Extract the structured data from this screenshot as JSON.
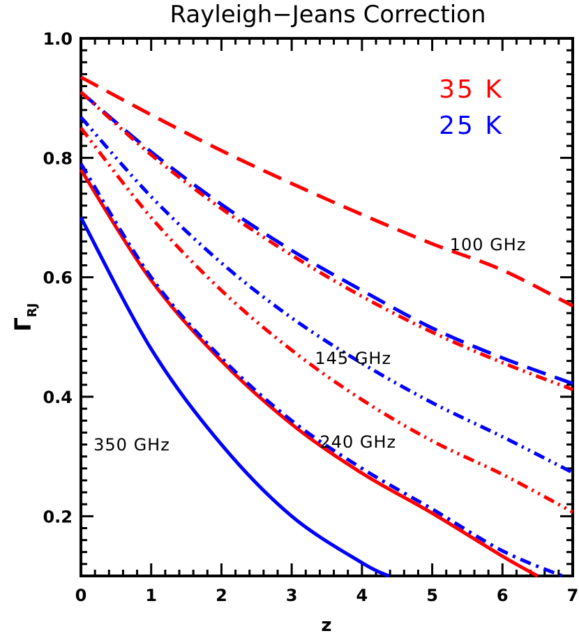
{
  "chart_data": {
    "type": "line",
    "title": "Rayleigh−Jeans Correction",
    "xlabel": "z",
    "ylabel_main": "Γ",
    "ylabel_sub": "RJ",
    "xlim": [
      0,
      7
    ],
    "ylim": [
      0.1,
      1.0
    ],
    "xticks": [
      0,
      1,
      2,
      3,
      4,
      5,
      6,
      7
    ],
    "xtick_labels": [
      "0",
      "1",
      "2",
      "3",
      "4",
      "5",
      "6",
      "7"
    ],
    "yticks": [
      0.2,
      0.4,
      0.6,
      0.8,
      1.0
    ],
    "ytick_labels": [
      "0.2",
      "0.4",
      "0.6",
      "0.8",
      "1.0"
    ],
    "legend": [
      {
        "label": "35 K",
        "color": "#ff0000"
      },
      {
        "label": "25 K",
        "color": "#0000ff"
      }
    ],
    "annotations": [
      {
        "text": "100 GHz",
        "x": 5.25,
        "y": 0.645
      },
      {
        "text": "145 GHz",
        "x": 3.33,
        "y": 0.455
      },
      {
        "text": "240 GHz",
        "x": 3.4,
        "y": 0.315
      },
      {
        "text": "350 GHz",
        "x": 0.18,
        "y": 0.31
      }
    ],
    "series": [
      {
        "freq": "100 GHz",
        "temp": "35 K",
        "color": "#ff0000",
        "style": "dashed",
        "x": [
          0,
          1,
          2,
          3,
          4,
          5,
          6,
          7
        ],
        "y": [
          0.935,
          0.872,
          0.812,
          0.757,
          0.705,
          0.656,
          0.612,
          0.552
        ]
      },
      {
        "freq": "100 GHz",
        "temp": "25 K",
        "color": "#0000ff",
        "style": "dashed",
        "x": [
          0,
          1,
          2,
          3,
          4,
          5,
          6,
          7
        ],
        "y": [
          0.91,
          0.81,
          0.722,
          0.645,
          0.578,
          0.515,
          0.465,
          0.422
        ]
      },
      {
        "freq": "145 GHz",
        "temp": "35 K",
        "color": "#ff0000",
        "style": "dot-dot-dash",
        "x": [
          0,
          1,
          2,
          3,
          4,
          5,
          6,
          7
        ],
        "y": [
          0.91,
          0.805,
          0.715,
          0.637,
          0.568,
          0.508,
          0.457,
          0.412
        ]
      },
      {
        "freq": "145 GHz",
        "temp": "25 K",
        "color": "#0000ff",
        "style": "dot-dot-dash",
        "x": [
          0,
          1,
          2,
          3,
          4,
          5,
          6,
          7
        ],
        "y": [
          0.868,
          0.735,
          0.624,
          0.532,
          0.456,
          0.39,
          0.333,
          0.273
        ]
      },
      {
        "freq": "240 GHz",
        "temp": "35 K",
        "color": "#ff0000",
        "style": "dot-dot-dash",
        "x": [
          0,
          1,
          2,
          3,
          4,
          5,
          6,
          7
        ],
        "y": [
          0.85,
          0.7,
          0.578,
          0.478,
          0.395,
          0.326,
          0.27,
          0.207
        ]
      },
      {
        "freq": "240 GHz",
        "temp": "35 K",
        "color": "#ff0000",
        "style": "solid",
        "x": [
          0,
          1,
          2,
          3,
          4,
          5,
          6,
          6.5
        ],
        "y": [
          0.78,
          0.595,
          0.46,
          0.354,
          0.272,
          0.205,
          0.133,
          0.1
        ]
      },
      {
        "freq": "240 GHz",
        "temp": "25 K",
        "color": "#0000ff",
        "style": "dash-dot",
        "x": [
          0,
          1,
          2,
          3,
          4,
          5,
          6,
          6.85
        ],
        "y": [
          0.79,
          0.6,
          0.465,
          0.36,
          0.28,
          0.212,
          0.142,
          0.1
        ]
      },
      {
        "freq": "350 GHz",
        "temp": "25 K",
        "color": "#0000ff",
        "style": "solid",
        "x": [
          0,
          1,
          2,
          3,
          4,
          4.38
        ],
        "y": [
          0.7,
          0.48,
          0.32,
          0.2,
          0.122,
          0.1
        ]
      }
    ]
  }
}
